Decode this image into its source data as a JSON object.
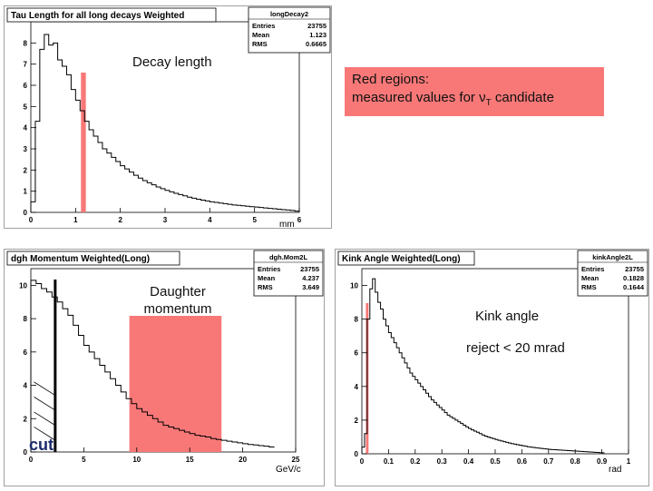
{
  "slide": {
    "decay_label": "Decay length",
    "red_box_line1": "Red regions:",
    "red_box_line2_prefix": "measured values for ν",
    "red_box_line2_sub": "T",
    "red_box_line2_suffix": " candidate",
    "daughter_label_1": "Daughter",
    "daughter_label_2": "momentum",
    "kink_label": "Kink angle",
    "reject_label": "reject < 20 mrad",
    "cut_label": "cut"
  },
  "colors": {
    "highlight": "#f87878",
    "panel_frame": "#a0a0a0",
    "hist_line": "#000000"
  },
  "chart_data": [
    {
      "type": "line",
      "title": "Tau Length for all long decays Weighted",
      "stats": {
        "name": "longDecay2",
        "rows": [
          [
            "Entries",
            "23755"
          ],
          [
            "Mean",
            "1.123"
          ],
          [
            "RMS",
            "0.6665"
          ]
        ]
      },
      "xlabel": "mm",
      "xlim": [
        0,
        6
      ],
      "ylim": [
        0,
        9
      ],
      "xticks": [
        "0",
        "1",
        "2",
        "3",
        "4",
        "5",
        "6"
      ],
      "yticks": [
        "0",
        "1",
        "2",
        "3",
        "4",
        "5",
        "6",
        "7",
        "8"
      ],
      "bin_width": 0.1,
      "values": [
        0.5,
        4.3,
        7.7,
        8.4,
        7.9,
        8.0,
        7.2,
        6.9,
        6.5,
        5.8,
        5.3,
        4.8,
        4.3,
        3.9,
        3.6,
        3.3,
        3.0,
        2.8,
        2.6,
        2.4,
        2.2,
        2.05,
        1.9,
        1.75,
        1.62,
        1.5,
        1.4,
        1.3,
        1.2,
        1.12,
        1.04,
        0.97,
        0.9,
        0.84,
        0.78,
        0.72,
        0.67,
        0.62,
        0.58,
        0.54,
        0.5,
        0.47,
        0.44,
        0.41,
        0.38,
        0.35,
        0.33,
        0.31,
        0.29,
        0.27,
        0.25,
        0.23,
        0.21,
        0.19,
        0.17,
        0.15,
        0.13,
        0.11,
        0.09,
        0.06
      ],
      "highlight": {
        "x": [
          1.12,
          1.23
        ]
      }
    },
    {
      "type": "line",
      "title": "dgh Momentum Weighted(Long)",
      "stats": {
        "name": "dgh.Mom2L",
        "rows": [
          [
            "Entries",
            "23755"
          ],
          [
            "Mean",
            "4.237"
          ],
          [
            "RMS",
            "3.649"
          ]
        ]
      },
      "xlabel": "GeV/c",
      "xlim": [
        0,
        25
      ],
      "ylim": [
        0,
        11
      ],
      "xticks": [
        "0",
        "5",
        "10",
        "15",
        "20",
        "25"
      ],
      "yticks": [
        "0",
        "2",
        "4",
        "6",
        "8",
        "10"
      ],
      "bin_width": 0.5,
      "values": [
        10.3,
        10.1,
        9.8,
        9.6,
        9.3,
        9.0,
        8.6,
        8.2,
        7.6,
        7.0,
        6.4,
        6.0,
        5.6,
        5.2,
        4.8,
        4.4,
        4.0,
        3.6,
        3.2,
        2.9,
        2.6,
        2.4,
        2.2,
        2.0,
        1.8,
        1.6,
        1.5,
        1.4,
        1.3,
        1.2,
        1.1,
        1.0,
        0.95,
        0.9,
        0.8,
        0.75,
        0.7,
        0.65,
        0.6,
        0.55,
        0.5,
        0.45,
        0.42,
        0.38,
        0.35,
        0.3
      ],
      "highlight": {
        "x": [
          9.3,
          18.0
        ]
      },
      "cut_x": 2.3
    },
    {
      "type": "line",
      "title": "Kink Angle Weighted(Long)",
      "stats": {
        "name": "kinkAngle2L",
        "rows": [
          [
            "Entries",
            "23755"
          ],
          [
            "Mean",
            "0.1828"
          ],
          [
            "RMS",
            "0.1644"
          ]
        ]
      },
      "xlabel": "rad",
      "xlim": [
        0,
        1
      ],
      "ylim": [
        0,
        11
      ],
      "xticks": [
        "0",
        "0.1",
        "0.2",
        "0.3",
        "0.4",
        "0.5",
        "0.6",
        "0.7",
        "0.8",
        "0.9",
        "1"
      ],
      "yticks": [
        "0",
        "2",
        "4",
        "6",
        "8",
        "10"
      ],
      "bin_width": 0.01,
      "values": [
        0.4,
        1.2,
        8.0,
        9.8,
        10.4,
        9.6,
        9.0,
        8.6,
        8.0,
        7.6,
        7.2,
        6.9,
        6.6,
        6.3,
        6.0,
        5.7,
        5.4,
        5.1,
        4.8,
        4.6,
        4.4,
        4.2,
        4.0,
        3.8,
        3.6,
        3.4,
        3.2,
        3.05,
        2.9,
        2.75,
        2.6,
        2.45,
        2.3,
        2.2,
        2.1,
        2.0,
        1.9,
        1.8,
        1.7,
        1.6,
        1.5,
        1.42,
        1.35,
        1.28,
        1.2,
        1.12,
        1.05,
        1.0,
        0.95,
        0.9,
        0.85,
        0.8,
        0.76,
        0.72,
        0.68,
        0.64,
        0.6,
        0.57,
        0.54,
        0.51,
        0.48,
        0.45,
        0.42,
        0.4,
        0.38,
        0.36,
        0.34,
        0.32,
        0.3,
        0.28,
        0.26,
        0.25,
        0.24,
        0.23,
        0.22,
        0.21,
        0.2,
        0.19,
        0.18,
        0.17,
        0.16,
        0.15,
        0.14,
        0.13,
        0.12,
        0.11,
        0.1,
        0.09,
        0.08,
        0.07,
        0.06
      ],
      "highlight": {
        "x": [
          0.015,
          0.025
        ]
      }
    }
  ]
}
